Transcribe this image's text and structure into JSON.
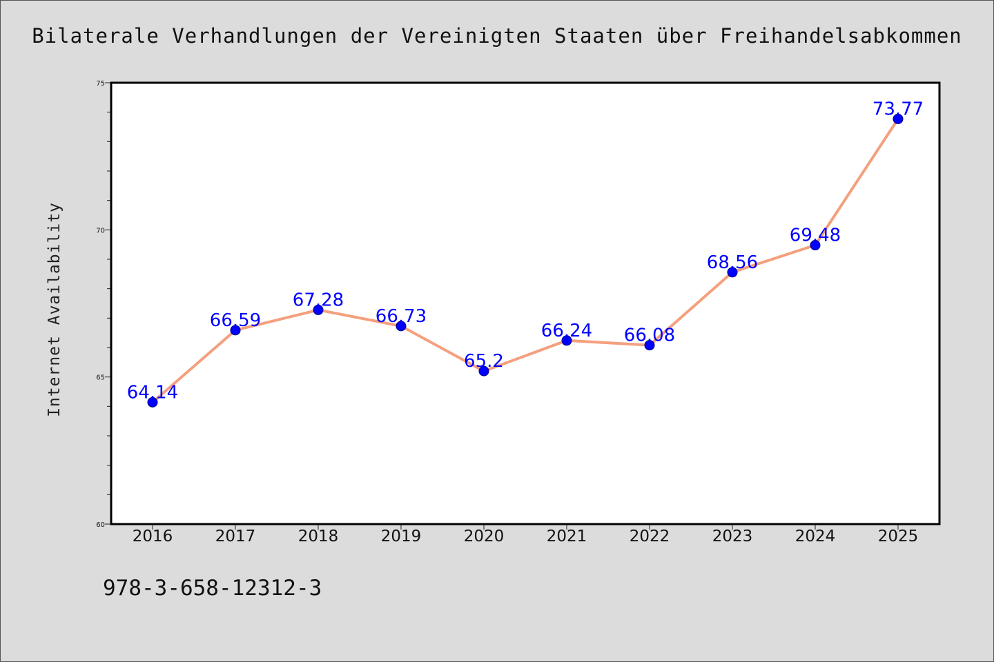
{
  "page": {
    "footer_code": "978-3-658-12312-3"
  },
  "chart_data": {
    "type": "line",
    "title": "Bilaterale Verhandlungen der Vereinigten Staaten über Freihandelsabkommen",
    "xlabel": "",
    "ylabel": "Internet Availability",
    "categories": [
      "2016",
      "2017",
      "2018",
      "2019",
      "2020",
      "2021",
      "2022",
      "2023",
      "2024",
      "2025"
    ],
    "series": [
      {
        "values": [
          64.14,
          66.59,
          67.28,
          66.73,
          65.2,
          66.24,
          66.08,
          68.56,
          69.48,
          73.77
        ],
        "data_labels": [
          "64.14",
          "66.59",
          "67.28",
          "66.73",
          "65.2",
          "66.24",
          "66.08",
          "68.56",
          "69.48",
          "73.77"
        ],
        "line_color": "#f4a07e",
        "marker_color": "#0000ff"
      }
    ],
    "ylim": [
      60,
      75
    ],
    "y_major_ticks": [
      60,
      65,
      70,
      75
    ],
    "y_minor_step": 1,
    "grid": false,
    "legend": "none"
  }
}
